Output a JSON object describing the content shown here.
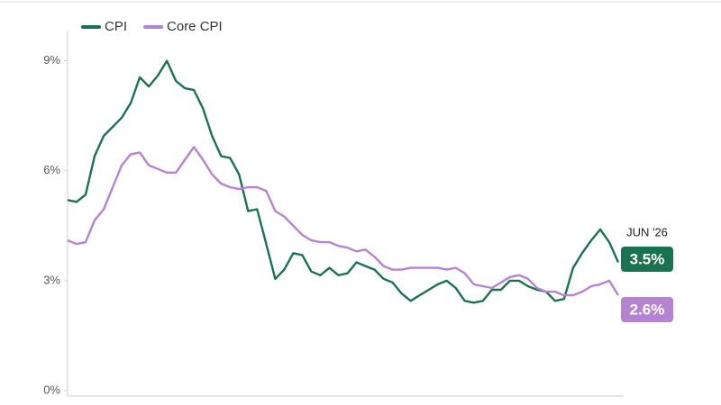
{
  "chart_data": {
    "type": "line",
    "annotation": "JUN '26",
    "series": [
      {
        "name": "CPI",
        "color": "#1a7350",
        "end_label": "3.5%",
        "values": [
          5.2,
          5.15,
          5.35,
          6.4,
          6.95,
          7.2,
          7.45,
          7.85,
          8.55,
          8.3,
          8.6,
          9.0,
          8.45,
          8.25,
          8.2,
          7.7,
          6.95,
          6.4,
          6.35,
          5.9,
          4.9,
          4.95,
          4.0,
          3.05,
          3.3,
          3.75,
          3.7,
          3.25,
          3.15,
          3.35,
          3.15,
          3.2,
          3.5,
          3.4,
          3.3,
          3.05,
          2.95,
          2.65,
          2.45,
          2.6,
          2.75,
          2.9,
          3.0,
          2.8,
          2.45,
          2.4,
          2.45,
          2.75,
          2.75,
          3.0,
          3.0,
          2.85,
          2.75,
          2.7,
          2.45,
          2.5,
          3.35,
          3.75,
          4.1,
          4.4,
          4.05,
          3.5
        ]
      },
      {
        "name": "Core CPI",
        "color": "#b583d0",
        "end_label": "2.6%",
        "values": [
          4.1,
          4.0,
          4.05,
          4.65,
          4.95,
          5.55,
          6.15,
          6.45,
          6.5,
          6.15,
          6.05,
          5.95,
          5.95,
          6.3,
          6.65,
          6.3,
          5.9,
          5.65,
          5.55,
          5.5,
          5.55,
          5.55,
          5.45,
          4.9,
          4.75,
          4.5,
          4.25,
          4.1,
          4.05,
          4.05,
          3.95,
          3.9,
          3.8,
          3.85,
          3.65,
          3.4,
          3.3,
          3.3,
          3.35,
          3.35,
          3.35,
          3.35,
          3.3,
          3.35,
          3.2,
          2.9,
          2.85,
          2.8,
          2.95,
          3.1,
          3.15,
          3.05,
          2.8,
          2.7,
          2.7,
          2.6,
          2.6,
          2.7,
          2.85,
          2.9,
          3.0,
          2.6
        ]
      }
    ],
    "ylim": [
      0,
      9.8
    ],
    "yticks": [
      {
        "value": 0,
        "label": "0%"
      },
      {
        "value": 3,
        "label": "3%"
      },
      {
        "value": 6,
        "label": "6%"
      },
      {
        "value": 9,
        "label": "9%"
      }
    ],
    "legend": "top-left"
  }
}
